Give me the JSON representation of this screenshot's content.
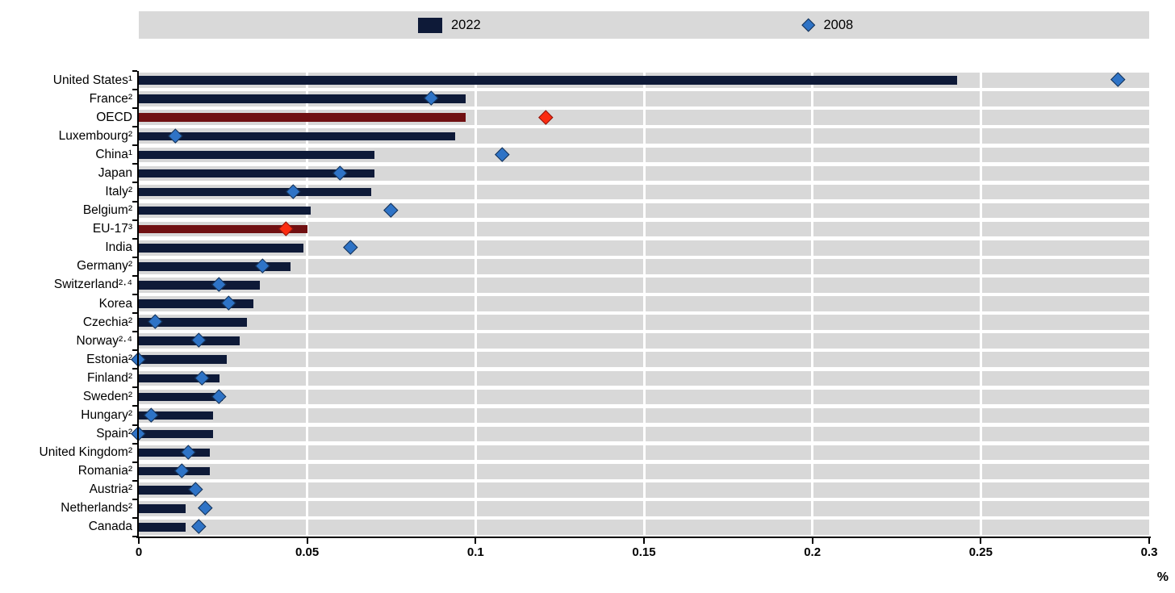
{
  "chart_data": {
    "type": "bar",
    "orientation": "horizontal",
    "unit_label": "%",
    "xlim": [
      0,
      0.3
    ],
    "x_tick_labels": [
      "0",
      "0.05",
      "0.1",
      "0.15",
      "0.2",
      "0.25",
      "0.3"
    ],
    "grid": "vertical-white-on-gray",
    "legend": {
      "position": "top",
      "items": [
        {
          "label": "2022",
          "marker": "bar"
        },
        {
          "label": "2008",
          "marker": "diamond"
        }
      ]
    },
    "categories": [
      "United States¹",
      "France²",
      "OECD",
      "Luxembourg²",
      "China¹",
      "Japan",
      "Italy²",
      "Belgium²",
      "EU-17³",
      "India",
      "Germany²",
      "Switzerland²·⁴",
      "Korea",
      "Czechia²",
      "Norway²·⁴",
      "Estonia²",
      "Finland²",
      "Sweden²",
      "Hungary²",
      "Spain²",
      "United Kingdom²",
      "Romania²",
      "Austria²",
      "Netherlands²",
      "Canada"
    ],
    "series": [
      {
        "name": "2022",
        "type": "bar",
        "values": [
          0.243,
          0.097,
          0.097,
          0.094,
          0.07,
          0.07,
          0.069,
          0.051,
          0.05,
          0.049,
          0.045,
          0.036,
          0.034,
          0.032,
          0.03,
          0.026,
          0.024,
          0.025,
          0.022,
          0.022,
          0.021,
          0.021,
          0.016,
          0.014,
          0.014
        ]
      },
      {
        "name": "2008",
        "type": "point-diamond",
        "values": [
          0.291,
          0.087,
          0.121,
          0.011,
          0.108,
          0.06,
          0.046,
          0.075,
          0.044,
          0.063,
          0.037,
          0.024,
          0.027,
          0.005,
          0.018,
          0.0,
          0.019,
          0.024,
          0.004,
          0.0,
          0.015,
          0.013,
          0.017,
          0.02,
          0.018
        ]
      }
    ],
    "highlighted_categories": [
      "OECD",
      "EU-17³"
    ],
    "colors": {
      "bar_2022": "#0e1a38",
      "bar_highlight": "#701012",
      "diamond_2008": "#2e73c6",
      "diamond_2008_border": "#142f52",
      "diamond_highlight": "#fb2b10",
      "diamond_highlight_border": "#8c130b",
      "row_band": "#d8d8d8",
      "legend_band": "#d9d9d9",
      "axis": "#000000"
    }
  }
}
